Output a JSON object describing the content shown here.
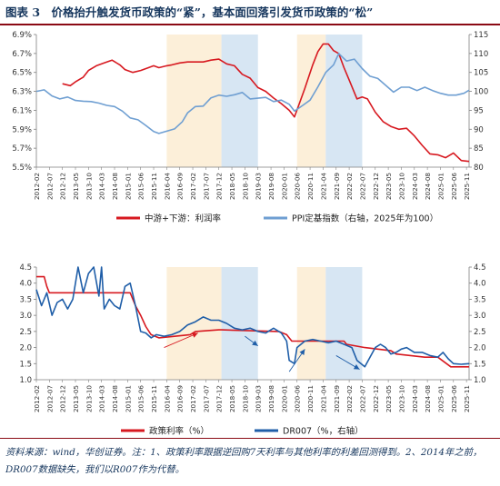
{
  "title": "图表 3　价格抬升触发货币政策的“紧”，基本面回落引发货币政策的“松”",
  "source_note": "资料来源：wind，华创证券。注：1、政策利率跟据逆回购7天利率与其他利率的利差回测得到。2、2014年之前，DR007数据缺失，我们以R007作为代替。",
  "colors": {
    "red": "#d71920",
    "blue_light": "#6f9fd2",
    "blue_dark": "#1f5ea8",
    "shade_tight": "#fcefd9",
    "shade_loose": "#d7e6f3",
    "title": "#17375e",
    "accent": "#8b0a14"
  },
  "x_tick_labels": [
    "2012-02",
    "2012-07",
    "2012-12",
    "2013-05",
    "2013-10",
    "2014-03",
    "2014-08",
    "2015-01",
    "2015-06",
    "2015-11",
    "2016-04",
    "2016-09",
    "2017-02",
    "2017-07",
    "2017-12",
    "2018-05",
    "2018-10",
    "2019-03",
    "2019-08",
    "2020-01",
    "2020-06",
    "2020-11",
    "2021-04",
    "2021-09",
    "2022-02",
    "2022-07",
    "2022-12",
    "2023-05",
    "2023-10",
    "2024-03",
    "2024-08",
    "2025-01",
    "2025-06",
    "2025-11"
  ],
  "shaded_periods": [
    {
      "type": "tight",
      "from": "2016-04",
      "to": "2018-01"
    },
    {
      "type": "loose",
      "from": "2018-01",
      "to": "2019-03"
    },
    {
      "type": "tight",
      "from": "2020-06",
      "to": "2021-05"
    },
    {
      "type": "loose",
      "from": "2021-05",
      "to": "2022-07"
    }
  ],
  "chart_data": [
    {
      "type": "line",
      "title": "",
      "y_left": {
        "ticks": [
          "5.5%",
          "5.7%",
          "5.9%",
          "6.1%",
          "6.3%",
          "6.5%",
          "6.7%",
          "6.9%"
        ],
        "ylim": [
          5.5,
          6.9
        ]
      },
      "y_right": {
        "ticks": [
          "80",
          "85",
          "90",
          "95",
          "100",
          "105",
          "110",
          "115"
        ],
        "ylim": [
          80,
          115
        ]
      },
      "grid": false,
      "legend_position": "bottom",
      "series": [
        {
          "name": "中游+下游：利润率",
          "axis": "left",
          "color": "#d71920",
          "points": [
            [
              "2012-12",
              6.38
            ],
            [
              "2013-03",
              6.36
            ],
            [
              "2013-05",
              6.4
            ],
            [
              "2013-08",
              6.45
            ],
            [
              "2013-10",
              6.52
            ],
            [
              "2014-01",
              6.57
            ],
            [
              "2014-04",
              6.6
            ],
            [
              "2014-07",
              6.63
            ],
            [
              "2014-10",
              6.58
            ],
            [
              "2014-12",
              6.53
            ],
            [
              "2015-03",
              6.5
            ],
            [
              "2015-06",
              6.52
            ],
            [
              "2015-09",
              6.55
            ],
            [
              "2015-11",
              6.57
            ],
            [
              "2016-01",
              6.55
            ],
            [
              "2016-04",
              6.57
            ],
            [
              "2016-06",
              6.58
            ],
            [
              "2016-09",
              6.6
            ],
            [
              "2016-12",
              6.61
            ],
            [
              "2017-03",
              6.61
            ],
            [
              "2017-06",
              6.61
            ],
            [
              "2017-09",
              6.63
            ],
            [
              "2017-12",
              6.64
            ],
            [
              "2018-03",
              6.59
            ],
            [
              "2018-06",
              6.57
            ],
            [
              "2018-09",
              6.48
            ],
            [
              "2018-12",
              6.44
            ],
            [
              "2019-03",
              6.34
            ],
            [
              "2019-06",
              6.3
            ],
            [
              "2019-09",
              6.23
            ],
            [
              "2019-12",
              6.17
            ],
            [
              "2020-03",
              6.1
            ],
            [
              "2020-05",
              6.03
            ],
            [
              "2020-07",
              6.18
            ],
            [
              "2020-09",
              6.33
            ],
            [
              "2020-12",
              6.58
            ],
            [
              "2021-02",
              6.72
            ],
            [
              "2021-04",
              6.8
            ],
            [
              "2021-06",
              6.8
            ],
            [
              "2021-08",
              6.73
            ],
            [
              "2021-10",
              6.7
            ],
            [
              "2021-12",
              6.55
            ],
            [
              "2022-02",
              6.42
            ],
            [
              "2022-05",
              6.22
            ],
            [
              "2022-07",
              6.24
            ],
            [
              "2022-09",
              6.22
            ],
            [
              "2022-12",
              6.08
            ],
            [
              "2023-03",
              5.98
            ],
            [
              "2023-06",
              5.93
            ],
            [
              "2023-09",
              5.9
            ],
            [
              "2023-12",
              5.91
            ],
            [
              "2024-03",
              5.83
            ],
            [
              "2024-06",
              5.73
            ],
            [
              "2024-09",
              5.64
            ],
            [
              "2024-12",
              5.63
            ],
            [
              "2025-03",
              5.6
            ],
            [
              "2025-06",
              5.65
            ],
            [
              "2025-09",
              5.57
            ],
            [
              "2025-12",
              5.56
            ]
          ]
        },
        {
          "name": "PPI定基指数（右轴，2025年为100）",
          "axis": "right",
          "color": "#6f9fd2",
          "points": [
            [
              "2012-02",
              100.0
            ],
            [
              "2012-05",
              100.4
            ],
            [
              "2012-08",
              98.8
            ],
            [
              "2012-11",
              98.0
            ],
            [
              "2013-02",
              98.5
            ],
            [
              "2013-05",
              97.6
            ],
            [
              "2013-08",
              97.4
            ],
            [
              "2013-11",
              97.3
            ],
            [
              "2014-02",
              96.9
            ],
            [
              "2014-05",
              96.3
            ],
            [
              "2014-08",
              96.0
            ],
            [
              "2014-11",
              94.8
            ],
            [
              "2015-02",
              93.0
            ],
            [
              "2015-05",
              92.5
            ],
            [
              "2015-08",
              91.0
            ],
            [
              "2015-11",
              89.4
            ],
            [
              "2016-01",
              88.9
            ],
            [
              "2016-04",
              89.5
            ],
            [
              "2016-07",
              90.1
            ],
            [
              "2016-10",
              92.0
            ],
            [
              "2016-12",
              94.3
            ],
            [
              "2017-03",
              96.0
            ],
            [
              "2017-06",
              96.1
            ],
            [
              "2017-09",
              98.3
            ],
            [
              "2017-12",
              99.0
            ],
            [
              "2018-03",
              98.7
            ],
            [
              "2018-06",
              99.1
            ],
            [
              "2018-09",
              99.7
            ],
            [
              "2018-12",
              98.0
            ],
            [
              "2019-03",
              98.2
            ],
            [
              "2019-06",
              98.4
            ],
            [
              "2019-09",
              97.3
            ],
            [
              "2019-12",
              97.7
            ],
            [
              "2020-03",
              96.6
            ],
            [
              "2020-05",
              94.8
            ],
            [
              "2020-08",
              96.2
            ],
            [
              "2020-11",
              97.7
            ],
            [
              "2021-02",
              101.2
            ],
            [
              "2021-05",
              105.0
            ],
            [
              "2021-08",
              107.0
            ],
            [
              "2021-10",
              110.0
            ],
            [
              "2022-01",
              108.0
            ],
            [
              "2022-04",
              108.5
            ],
            [
              "2022-07",
              106.0
            ],
            [
              "2022-10",
              104.0
            ],
            [
              "2023-01",
              103.4
            ],
            [
              "2023-04",
              101.6
            ],
            [
              "2023-07",
              99.8
            ],
            [
              "2023-10",
              101.1
            ],
            [
              "2024-01",
              101.1
            ],
            [
              "2024-04",
              100.2
            ],
            [
              "2024-07",
              101.1
            ],
            [
              "2024-10",
              100.2
            ],
            [
              "2025-01",
              99.5
            ],
            [
              "2025-04",
              99.0
            ],
            [
              "2025-07",
              99.0
            ],
            [
              "2025-10",
              99.5
            ],
            [
              "2025-12",
              100.3
            ]
          ]
        }
      ]
    },
    {
      "type": "line",
      "title": "",
      "y_left": {
        "ticks": [
          "1.0",
          "1.5",
          "2.0",
          "2.5",
          "3.0",
          "3.5",
          "4.0",
          "4.5"
        ],
        "ylim": [
          1.0,
          4.5
        ]
      },
      "y_right": {
        "ticks": [
          "1.0",
          "1.5",
          "2.0",
          "2.5",
          "3.0",
          "3.5",
          "4.0",
          "4.5"
        ],
        "ylim": [
          1.0,
          4.5
        ]
      },
      "grid": false,
      "legend_position": "bottom",
      "series": [
        {
          "name": "政策利率（%）",
          "axis": "left",
          "color": "#d71920",
          "points": [
            [
              "2012-02",
              4.2
            ],
            [
              "2012-05",
              4.2
            ],
            [
              "2012-06",
              3.9
            ],
            [
              "2012-07",
              3.7
            ],
            [
              "2015-02",
              3.7
            ],
            [
              "2015-04",
              3.3
            ],
            [
              "2015-06",
              3.0
            ],
            [
              "2015-08",
              2.65
            ],
            [
              "2015-10",
              2.4
            ],
            [
              "2016-01",
              2.3
            ],
            [
              "2017-01",
              2.4
            ],
            [
              "2017-03",
              2.5
            ],
            [
              "2017-12",
              2.55
            ],
            [
              "2018-01",
              2.55
            ],
            [
              "2019-11",
              2.5
            ],
            [
              "2020-02",
              2.4
            ],
            [
              "2020-04",
              2.2
            ],
            [
              "2021-12",
              2.2
            ],
            [
              "2022-01",
              2.1
            ],
            [
              "2022-08",
              2.0
            ],
            [
              "2023-06",
              1.9
            ],
            [
              "2023-08",
              1.8
            ],
            [
              "2024-07",
              1.7
            ],
            [
              "2024-12",
              1.7
            ],
            [
              "2025-05",
              1.4
            ],
            [
              "2025-12",
              1.4
            ]
          ]
        },
        {
          "name": "DR007（%，右轴）",
          "axis": "right",
          "color": "#1f5ea8",
          "points": [
            [
              "2012-02",
              3.8
            ],
            [
              "2012-04",
              3.3
            ],
            [
              "2012-06",
              3.7
            ],
            [
              "2012-08",
              3.0
            ],
            [
              "2012-10",
              3.4
            ],
            [
              "2012-12",
              3.5
            ],
            [
              "2013-02",
              3.2
            ],
            [
              "2013-04",
              3.5
            ],
            [
              "2013-06",
              4.5
            ],
            [
              "2013-08",
              3.7
            ],
            [
              "2013-10",
              4.3
            ],
            [
              "2013-12",
              4.5
            ],
            [
              "2014-02",
              3.6
            ],
            [
              "2014-03",
              4.5
            ],
            [
              "2014-04",
              3.2
            ],
            [
              "2014-06",
              3.5
            ],
            [
              "2014-08",
              3.3
            ],
            [
              "2014-10",
              3.2
            ],
            [
              "2014-12",
              3.9
            ],
            [
              "2015-02",
              4.0
            ],
            [
              "2015-04",
              3.3
            ],
            [
              "2015-06",
              2.5
            ],
            [
              "2015-08",
              2.45
            ],
            [
              "2015-10",
              2.3
            ],
            [
              "2015-12",
              2.4
            ],
            [
              "2016-03",
              2.35
            ],
            [
              "2016-06",
              2.4
            ],
            [
              "2016-09",
              2.5
            ],
            [
              "2016-12",
              2.7
            ],
            [
              "2017-03",
              2.8
            ],
            [
              "2017-06",
              2.95
            ],
            [
              "2017-09",
              2.85
            ],
            [
              "2017-12",
              2.85
            ],
            [
              "2018-03",
              2.75
            ],
            [
              "2018-06",
              2.6
            ],
            [
              "2018-09",
              2.55
            ],
            [
              "2018-12",
              2.6
            ],
            [
              "2019-03",
              2.5
            ],
            [
              "2019-06",
              2.45
            ],
            [
              "2019-09",
              2.6
            ],
            [
              "2019-12",
              2.45
            ],
            [
              "2020-02",
              2.2
            ],
            [
              "2020-03",
              1.6
            ],
            [
              "2020-05",
              1.5
            ],
            [
              "2020-06",
              2.0
            ],
            [
              "2020-09",
              2.2
            ],
            [
              "2020-12",
              2.25
            ],
            [
              "2021-03",
              2.2
            ],
            [
              "2021-06",
              2.15
            ],
            [
              "2021-09",
              2.2
            ],
            [
              "2021-12",
              2.1
            ],
            [
              "2022-03",
              2.0
            ],
            [
              "2022-05",
              1.6
            ],
            [
              "2022-08",
              1.4
            ],
            [
              "2022-10",
              1.7
            ],
            [
              "2022-12",
              2.0
            ],
            [
              "2023-02",
              2.1
            ],
            [
              "2023-04",
              2.0
            ],
            [
              "2023-06",
              1.8
            ],
            [
              "2023-08",
              1.85
            ],
            [
              "2023-10",
              1.95
            ],
            [
              "2023-12",
              2.0
            ],
            [
              "2024-03",
              1.85
            ],
            [
              "2024-06",
              1.85
            ],
            [
              "2024-09",
              1.75
            ],
            [
              "2024-12",
              1.7
            ],
            [
              "2025-02",
              1.85
            ],
            [
              "2025-04",
              1.65
            ],
            [
              "2025-06",
              1.5
            ],
            [
              "2025-09",
              1.48
            ],
            [
              "2025-12",
              1.5
            ]
          ]
        }
      ]
    }
  ]
}
